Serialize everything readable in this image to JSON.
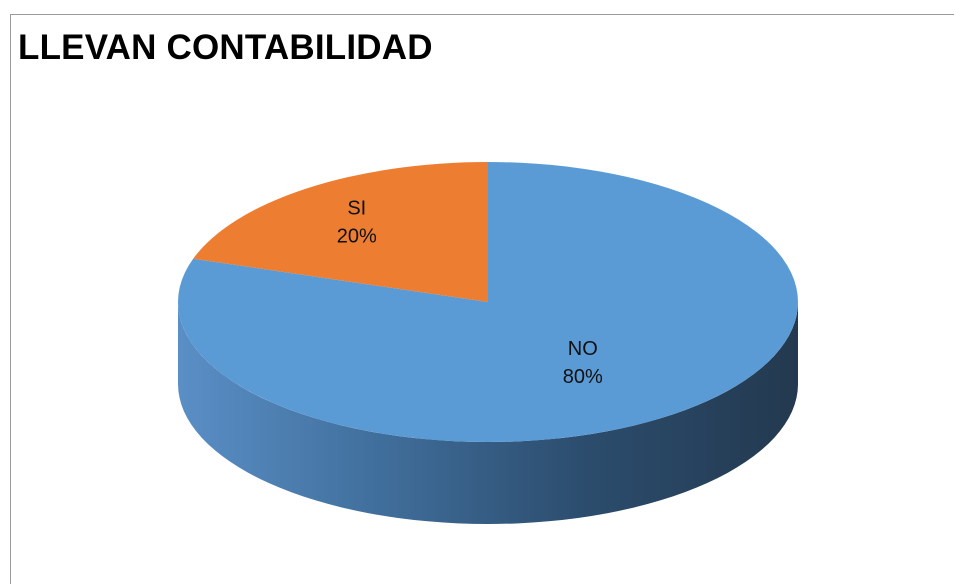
{
  "chart_data": {
    "type": "pie",
    "title": "LLEVAN CONTABILIDAD",
    "slices": [
      {
        "label": "NO",
        "value": 80,
        "pct_label": "80%",
        "color": "#5B9BD5"
      },
      {
        "label": "SI",
        "value": 20,
        "pct_label": "20%",
        "color": "#ED7D31"
      }
    ],
    "style": "3d-tilted",
    "legend": "none",
    "data_labels": "category-and-percent"
  }
}
